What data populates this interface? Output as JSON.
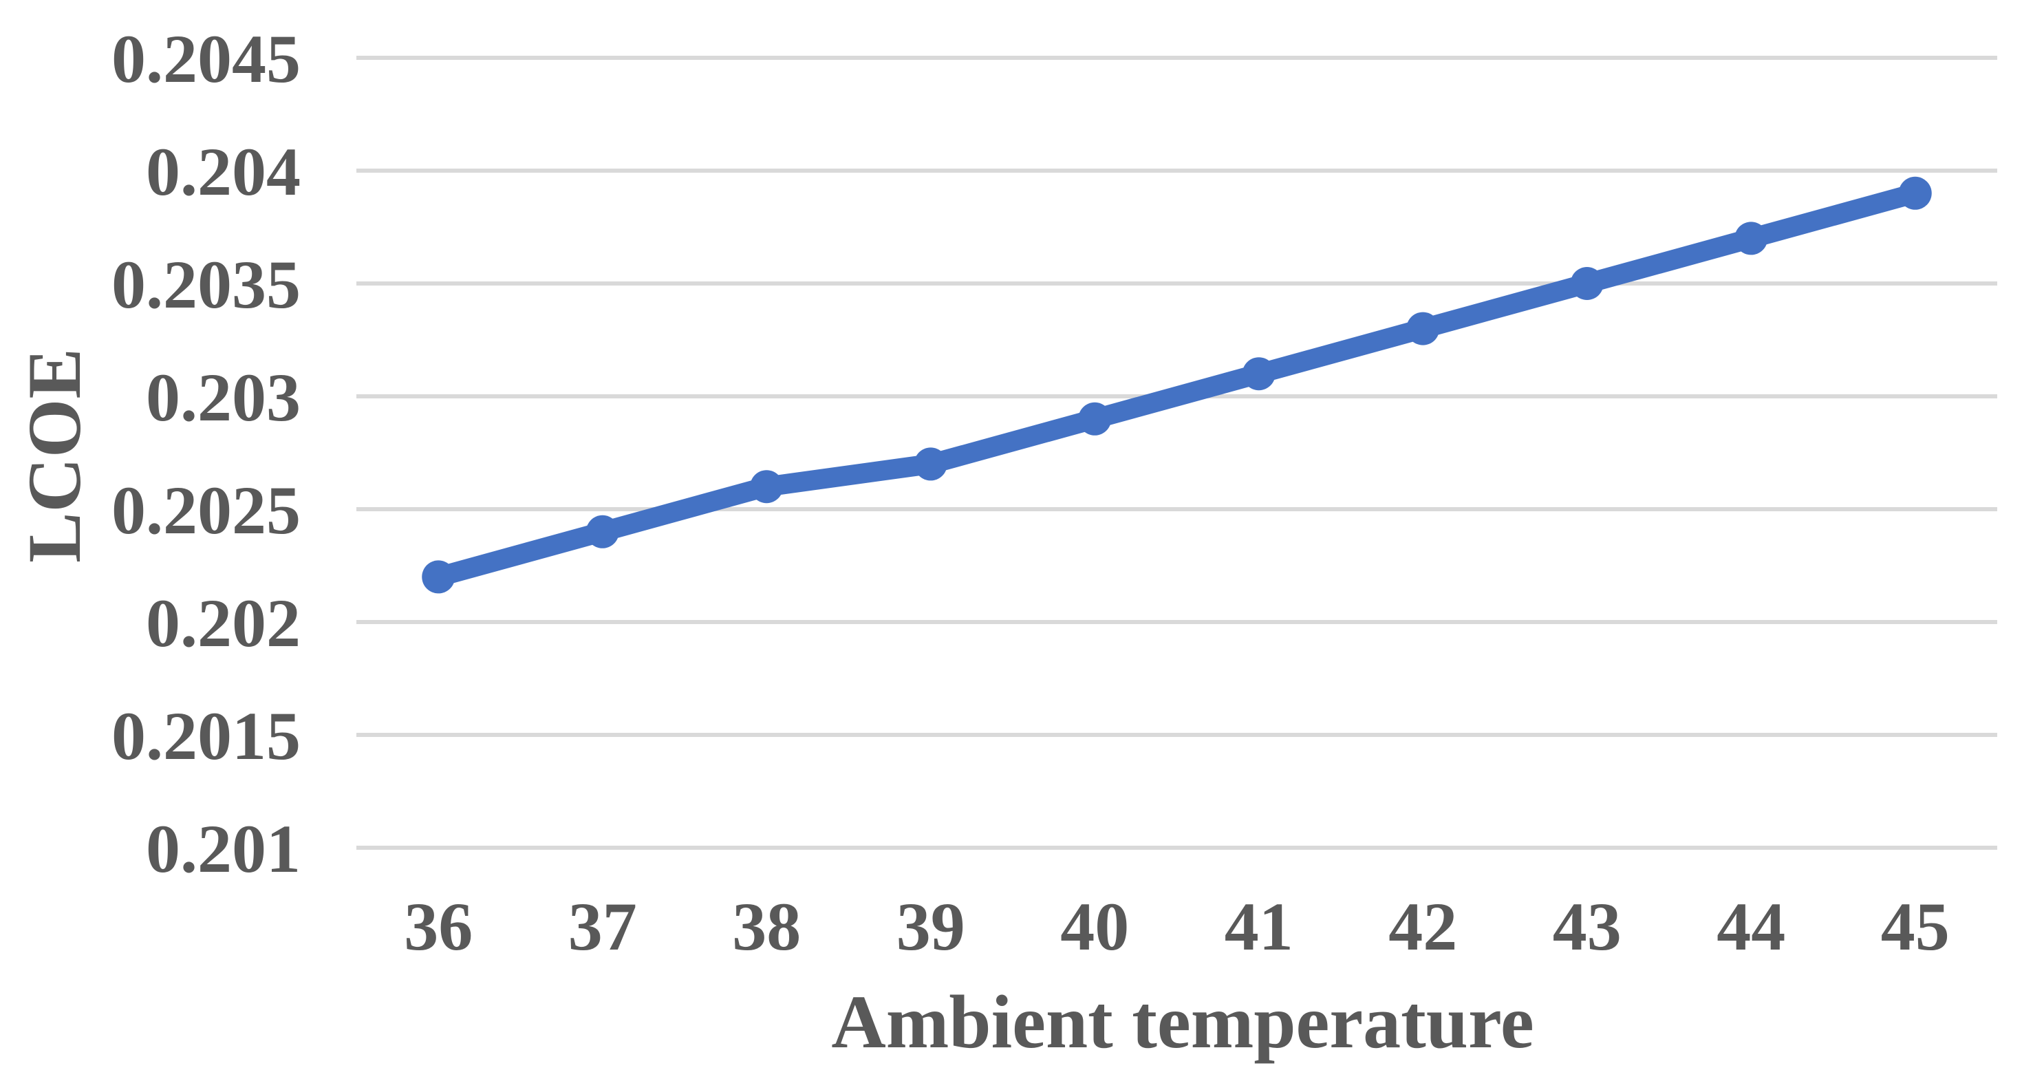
{
  "chart_data": {
    "type": "line",
    "title": "",
    "xlabel": "Ambient temperature",
    "ylabel": "LCOE",
    "x": [
      36,
      37,
      38,
      39,
      40,
      41,
      42,
      43,
      44,
      45
    ],
    "xtick_labels": [
      "36",
      "37",
      "38",
      "39",
      "40",
      "41",
      "42",
      "43",
      "44",
      "45"
    ],
    "series": [
      {
        "name": "LCOE",
        "values": [
          0.2022,
          0.2024,
          0.2026,
          0.2027,
          0.2029,
          0.2031,
          0.2033,
          0.2035,
          0.2037,
          0.2039
        ]
      }
    ],
    "ylim": [
      0.201,
      0.2045
    ],
    "ytick_step": 0.0005,
    "yticks": [
      0.201,
      0.2015,
      0.202,
      0.2025,
      0.203,
      0.2035,
      0.204,
      0.2045
    ],
    "ytick_labels": [
      "0.201",
      "0.2015",
      "0.202",
      "0.2025",
      "0.203",
      "0.2035",
      "0.204",
      "0.2045"
    ],
    "grid": true,
    "legend_position": "none",
    "marker": "circle",
    "colors": {
      "line": "#4472C4",
      "marker": "#4472C4",
      "gridline": "#D9D9D9",
      "text": "#595959",
      "background": "#FFFFFF"
    }
  }
}
